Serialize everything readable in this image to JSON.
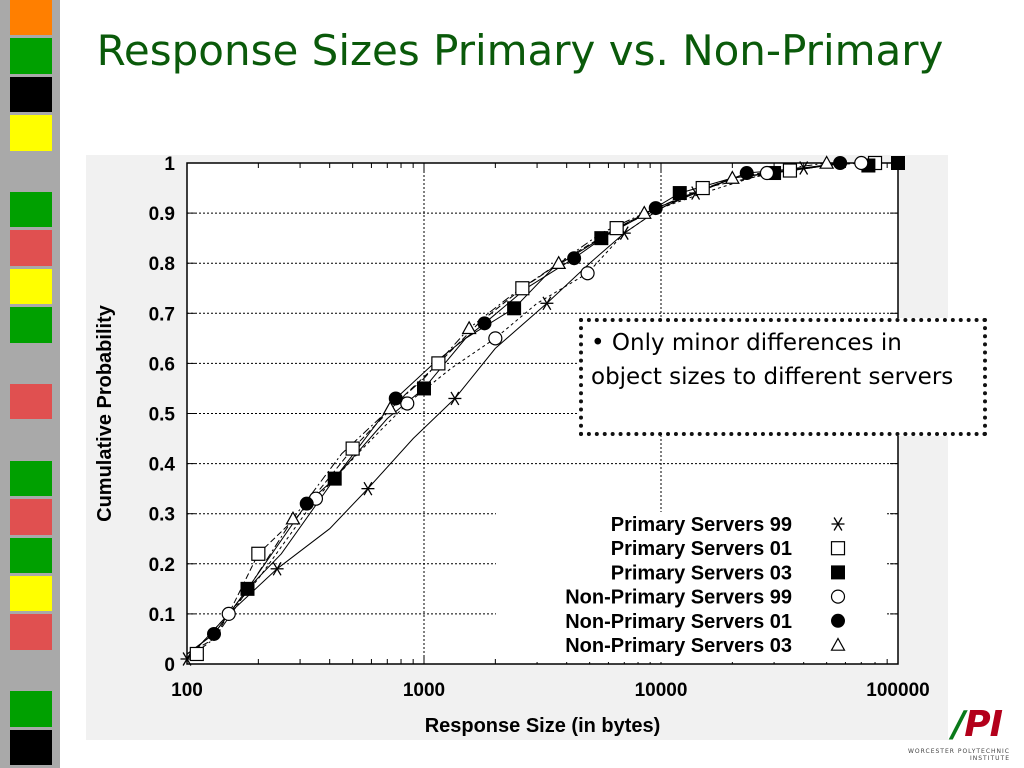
{
  "slide": {
    "title": "Response Sizes Primary vs. Non-Primary",
    "callout_bullet": "•",
    "callout_text": "Only minor differences in object sizes to different servers"
  },
  "logo": {
    "mark_slash": "/",
    "mark_letters": "PI",
    "caption": "WORCESTER POLYTECHNIC INSTITUTE"
  },
  "side_strip_colors": [
    "#ff7f00",
    "#00a000",
    "#000000",
    "#ffff00",
    "#a9a9a9",
    "#00a000",
    "#e05050",
    "#ffff00",
    "#00a000",
    "#a9a9a9",
    "#e05050",
    "#a9a9a9",
    "#00a000",
    "#e05050",
    "#00a000",
    "#ffff00",
    "#e05050",
    "#a9a9a9",
    "#00a000",
    "#000000"
  ],
  "chart_data": {
    "type": "line",
    "xlabel": "Response Size (in bytes)",
    "ylabel": "Cumulative Probability",
    "x_scale": "log",
    "xlim": [
      100,
      100000
    ],
    "ylim": [
      0,
      1
    ],
    "x_ticks": [
      100,
      1000,
      10000,
      100000
    ],
    "x_tick_labels": [
      "100",
      "1000",
      "10000",
      "100000"
    ],
    "y_ticks": [
      0,
      0.1,
      0.2,
      0.3,
      0.4,
      0.5,
      0.6,
      0.7,
      0.8,
      0.9,
      1
    ],
    "y_tick_labels": [
      "0",
      "0.1",
      "0.2",
      "0.3",
      "0.4",
      "0.5",
      "0.6",
      "0.7",
      "0.8",
      "0.9",
      "1"
    ],
    "grid": true,
    "legend_position": "bottom-right",
    "series": [
      {
        "name": "Primary Servers 99",
        "marker": "asterisk",
        "dash": "",
        "x": [
          100,
          150,
          240,
          400,
          580,
          900,
          1350,
          2000,
          3300,
          5000,
          7000,
          10000,
          14000,
          20000,
          40000,
          60000,
          100000
        ],
        "y": [
          0.01,
          0.1,
          0.19,
          0.27,
          0.35,
          0.45,
          0.53,
          0.63,
          0.72,
          0.8,
          0.86,
          0.91,
          0.94,
          0.97,
          0.99,
          1.0,
          1.0
        ],
        "marker_x": [
          100,
          240,
          580,
          1350,
          3300,
          7000,
          14000,
          40000
        ],
        "marker_y": [
          0.01,
          0.19,
          0.35,
          0.53,
          0.72,
          0.86,
          0.94,
          0.99
        ]
      },
      {
        "name": "Primary Servers 01",
        "marker": "square-open",
        "dash": "6,3",
        "x": [
          100,
          130,
          150,
          200,
          300,
          500,
          800,
          1150,
          1700,
          2600,
          4000,
          6500,
          10000,
          15000,
          30000,
          60000,
          100000
        ],
        "y": [
          0.02,
          0.05,
          0.1,
          0.22,
          0.3,
          0.43,
          0.53,
          0.6,
          0.68,
          0.75,
          0.81,
          0.87,
          0.91,
          0.95,
          0.98,
          1.0,
          1.0
        ],
        "marker_x": [
          110,
          200,
          500,
          1150,
          2600,
          6500,
          15000,
          35000,
          80000
        ],
        "marker_y": [
          0.02,
          0.22,
          0.43,
          0.6,
          0.75,
          0.87,
          0.95,
          0.985,
          1.0
        ]
      },
      {
        "name": "Primary Servers 03",
        "marker": "square-filled",
        "dash": "",
        "x": [
          100,
          130,
          180,
          250,
          420,
          700,
          1000,
          1500,
          2400,
          3500,
          5600,
          8000,
          12000,
          20000,
          30000,
          60000,
          100000
        ],
        "y": [
          0.02,
          0.06,
          0.15,
          0.22,
          0.37,
          0.49,
          0.55,
          0.65,
          0.71,
          0.79,
          0.85,
          0.89,
          0.94,
          0.97,
          0.98,
          1.0,
          1.0
        ],
        "marker_x": [
          180,
          420,
          1000,
          2400,
          5600,
          12000,
          30000,
          75000,
          100000
        ],
        "marker_y": [
          0.15,
          0.37,
          0.55,
          0.71,
          0.85,
          0.94,
          0.98,
          0.995,
          1.0
        ]
      },
      {
        "name": "Non-Primary Servers 99",
        "marker": "circle-open",
        "dash": "3,3",
        "x": [
          100,
          150,
          200,
          350,
          550,
          850,
          1300,
          2000,
          3000,
          4900,
          7000,
          10000,
          15000,
          28000,
          50000,
          70000,
          100000
        ],
        "y": [
          0.01,
          0.1,
          0.17,
          0.33,
          0.43,
          0.52,
          0.59,
          0.65,
          0.72,
          0.78,
          0.86,
          0.91,
          0.94,
          0.98,
          0.995,
          1.0,
          1.0
        ],
        "marker_x": [
          150,
          350,
          850,
          2000,
          4900,
          28000,
          70000
        ],
        "marker_y": [
          0.1,
          0.33,
          0.52,
          0.65,
          0.78,
          0.98,
          1.0
        ]
      },
      {
        "name": "Non-Primary Servers 01",
        "marker": "circle-filled",
        "dash": "",
        "x": [
          100,
          130,
          180,
          320,
          420,
          760,
          1100,
          1800,
          2700,
          4300,
          6500,
          9500,
          14000,
          23000,
          40000,
          57000,
          100000
        ],
        "y": [
          0.02,
          0.06,
          0.15,
          0.32,
          0.37,
          0.53,
          0.6,
          0.68,
          0.75,
          0.81,
          0.87,
          0.91,
          0.94,
          0.98,
          0.99,
          1.0,
          1.0
        ],
        "marker_x": [
          130,
          320,
          760,
          1800,
          4300,
          9500,
          23000,
          57000
        ],
        "marker_y": [
          0.06,
          0.32,
          0.53,
          0.68,
          0.81,
          0.91,
          0.98,
          1.0
        ]
      },
      {
        "name": "Non-Primary Servers 03",
        "marker": "triangle-open",
        "dash": "8,3,2,3",
        "x": [
          100,
          130,
          170,
          280,
          450,
          720,
          1000,
          1550,
          2400,
          3700,
          5600,
          8500,
          12000,
          20000,
          35000,
          50000,
          100000
        ],
        "y": [
          0.01,
          0.05,
          0.13,
          0.29,
          0.42,
          0.51,
          0.57,
          0.67,
          0.74,
          0.8,
          0.86,
          0.9,
          0.93,
          0.97,
          0.99,
          1.0,
          1.0
        ],
        "marker_x": [
          280,
          720,
          1550,
          3700,
          8500,
          20000,
          50000
        ],
        "marker_y": [
          0.29,
          0.51,
          0.67,
          0.8,
          0.9,
          0.97,
          1.0
        ]
      }
    ]
  }
}
